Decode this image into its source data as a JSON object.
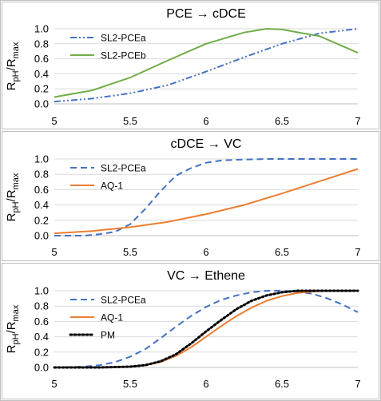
{
  "figure": {
    "ylabel": {
      "main_r1": "R",
      "sub1": "pH",
      "slash": "/",
      "main_r2": "R",
      "sub2": "max"
    }
  },
  "chart_data": [
    {
      "type": "line",
      "title": "PCE → cDCE",
      "xlim": [
        5,
        7
      ],
      "ylim": [
        0,
        1.0
      ],
      "xticks": [
        "5",
        "5.5",
        "6",
        "6.5",
        "7"
      ],
      "yticks": [
        "0.0",
        "0.2",
        "0.4",
        "0.6",
        "0.8",
        "1.0"
      ],
      "legend": "top-left",
      "grid": true,
      "series": [
        {
          "name": "SL2-PCEa",
          "color": "#4472c4",
          "dash": "dashdotdot",
          "x": [
            5.0,
            5.25,
            5.5,
            5.75,
            6.0,
            6.25,
            6.5,
            6.75,
            7.0
          ],
          "y": [
            0.03,
            0.07,
            0.14,
            0.25,
            0.43,
            0.62,
            0.8,
            0.94,
            1.0
          ]
        },
        {
          "name": "SL2-PCEb",
          "color": "#70ad47",
          "dash": "solid",
          "x": [
            5.0,
            5.25,
            5.5,
            5.75,
            6.0,
            6.25,
            6.4,
            6.5,
            6.75,
            7.0
          ],
          "y": [
            0.09,
            0.18,
            0.35,
            0.58,
            0.8,
            0.95,
            1.0,
            0.99,
            0.9,
            0.68
          ]
        }
      ]
    },
    {
      "type": "line",
      "title": "cDCE → VC",
      "xlim": [
        5,
        7
      ],
      "ylim": [
        0,
        1.0
      ],
      "xticks": [
        "5",
        "5.5",
        "6",
        "6.5",
        "7"
      ],
      "yticks": [
        "0.0",
        "0.2",
        "0.4",
        "0.6",
        "0.8",
        "1.0"
      ],
      "legend": "top-left",
      "grid": true,
      "series": [
        {
          "name": "SL2-PCEa",
          "color": "#4472c4",
          "dash": "dashed",
          "x": [
            5.0,
            5.2,
            5.3,
            5.4,
            5.5,
            5.6,
            5.7,
            5.8,
            5.9,
            6.0,
            6.1,
            6.2,
            6.4,
            6.6,
            7.0
          ],
          "y": [
            0.0,
            0.0,
            0.02,
            0.05,
            0.15,
            0.35,
            0.58,
            0.78,
            0.88,
            0.95,
            0.98,
            0.99,
            1.0,
            1.0,
            1.0
          ]
        },
        {
          "name": "AQ-1",
          "color": "#ed7d31",
          "dash": "solid",
          "x": [
            5.0,
            5.25,
            5.5,
            5.75,
            6.0,
            6.25,
            6.5,
            6.75,
            7.0
          ],
          "y": [
            0.03,
            0.06,
            0.11,
            0.18,
            0.28,
            0.4,
            0.55,
            0.71,
            0.87
          ]
        }
      ]
    },
    {
      "type": "line",
      "title": "VC → Ethene",
      "xlim": [
        5,
        7
      ],
      "ylim": [
        0,
        1.0
      ],
      "xticks": [
        "5",
        "5.5",
        "6",
        "6.5",
        "7"
      ],
      "yticks": [
        "0.0",
        "0.2",
        "0.4",
        "0.6",
        "0.8",
        "1.0"
      ],
      "legend": "top-left",
      "grid": true,
      "series": [
        {
          "name": "SL2-PCEa",
          "color": "#4472c4",
          "dash": "dashed",
          "x": [
            5.0,
            5.2,
            5.3,
            5.4,
            5.5,
            5.6,
            5.7,
            5.8,
            5.9,
            6.0,
            6.1,
            6.2,
            6.3,
            6.4,
            6.5,
            6.6,
            6.7,
            6.8,
            6.9,
            7.0
          ],
          "y": [
            0.0,
            0.01,
            0.03,
            0.07,
            0.14,
            0.24,
            0.38,
            0.53,
            0.67,
            0.79,
            0.88,
            0.94,
            0.98,
            1.0,
            1.0,
            0.99,
            0.96,
            0.9,
            0.82,
            0.72
          ]
        },
        {
          "name": "AQ-1",
          "color": "#ed7d31",
          "dash": "solid",
          "x": [
            5.0,
            5.3,
            5.5,
            5.6,
            5.7,
            5.8,
            5.9,
            6.0,
            6.1,
            6.2,
            6.3,
            6.4,
            6.5,
            6.6,
            6.7,
            6.8,
            7.0
          ],
          "y": [
            0.0,
            0.0,
            0.01,
            0.03,
            0.07,
            0.15,
            0.26,
            0.4,
            0.54,
            0.67,
            0.78,
            0.87,
            0.93,
            0.97,
            0.99,
            1.0,
            1.0
          ]
        },
        {
          "name": "PM",
          "color": "#000000",
          "dash": "dotted",
          "x": [
            5.0,
            5.3,
            5.5,
            5.6,
            5.7,
            5.8,
            5.9,
            6.0,
            6.1,
            6.2,
            6.3,
            6.4,
            6.5,
            6.6,
            6.7,
            7.0
          ],
          "y": [
            0.0,
            0.0,
            0.01,
            0.03,
            0.08,
            0.17,
            0.31,
            0.47,
            0.62,
            0.76,
            0.87,
            0.94,
            0.98,
            1.0,
            1.0,
            1.0
          ]
        }
      ]
    }
  ]
}
